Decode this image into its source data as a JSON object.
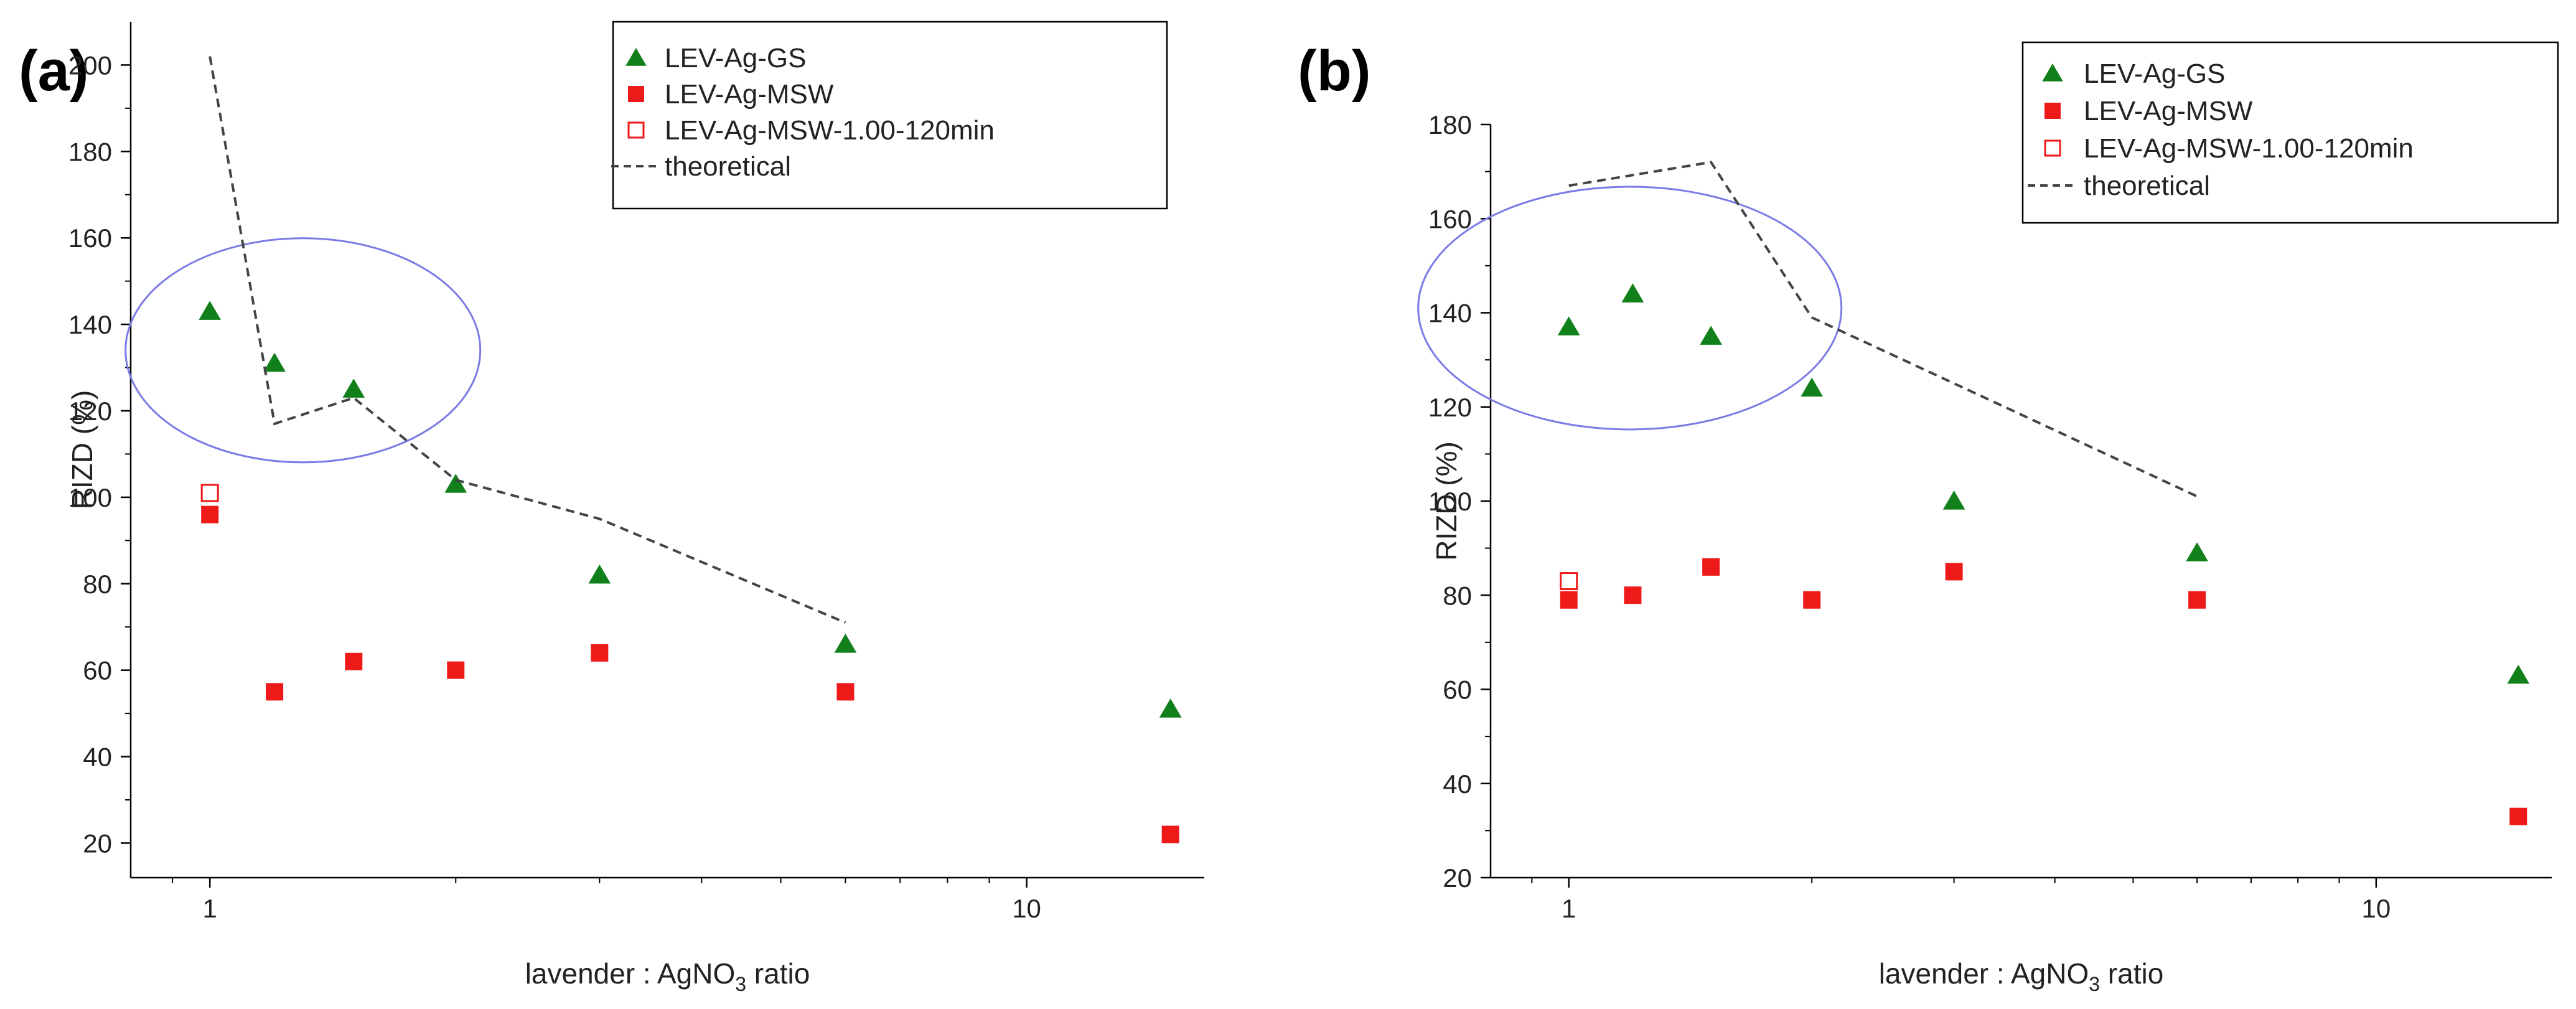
{
  "figure": {
    "panels": [
      "(a)",
      "(b)"
    ]
  },
  "colors": {
    "gs": "#12801a",
    "msw": "#ee1a1a",
    "theory": "#444444",
    "ellipse": "#7b7be6",
    "axis": "#000000"
  },
  "chart_data": [
    {
      "panel": "(a)",
      "type": "scatter",
      "xscale": "log",
      "xlim": [
        0.8,
        16.5
      ],
      "ylim": [
        12,
        210
      ],
      "xticks": [
        1,
        10
      ],
      "yticks": [
        20,
        40,
        60,
        80,
        100,
        120,
        140,
        160,
        180,
        200
      ],
      "xlabel": "lavender : AgNO",
      "xlabel_sub": "3",
      "xlabel_tail": " ratio",
      "ylabel": "RIZD (%)",
      "legend_position": "top-right",
      "series": [
        {
          "name": "LEV-Ag-GS",
          "marker": "triangle-filled",
          "color": "#12801a",
          "x": [
            1.0,
            1.2,
            1.5,
            2.0,
            3.0,
            6.0,
            15.0
          ],
          "y": [
            143,
            131,
            125,
            103,
            82,
            66,
            51
          ]
        },
        {
          "name": "LEV-Ag-MSW",
          "marker": "square-filled",
          "color": "#ee1a1a",
          "x": [
            1.0,
            1.2,
            1.5,
            2.0,
            3.0,
            6.0,
            15.0
          ],
          "y": [
            96,
            55,
            62,
            60,
            64,
            55,
            22
          ]
        },
        {
          "name": "LEV-Ag-MSW-1.00-120min",
          "marker": "square-open",
          "color": "#ee1a1a",
          "x": [
            1.0
          ],
          "y": [
            101
          ]
        },
        {
          "name": "theoretical",
          "marker": "dashed-line",
          "color": "#444444",
          "x": [
            1.0,
            1.2,
            1.5,
            2.0,
            3.0,
            6.0
          ],
          "y": [
            202,
            117,
            123,
            104,
            95,
            71
          ]
        }
      ],
      "annotations": [
        {
          "type": "ellipse",
          "center": [
            1.3,
            134
          ],
          "note": "circled points"
        }
      ]
    },
    {
      "panel": "(b)",
      "type": "scatter",
      "xscale": "log",
      "xlim": [
        0.8,
        16.5
      ],
      "ylim": [
        20,
        180
      ],
      "xticks": [
        1,
        10
      ],
      "yticks": [
        20,
        40,
        60,
        80,
        100,
        120,
        140,
        160,
        180
      ],
      "xlabel": "lavender : AgNO",
      "xlabel_sub": "3",
      "xlabel_tail": " ratio",
      "ylabel": "RIZD (%)",
      "legend_position": "top-right",
      "series": [
        {
          "name": "LEV-Ag-GS",
          "marker": "triangle-filled",
          "color": "#12801a",
          "x": [
            1.0,
            1.2,
            1.5,
            2.0,
            3.0,
            6.0,
            15.0
          ],
          "y": [
            137,
            144,
            135,
            124,
            100,
            89,
            63
          ]
        },
        {
          "name": "LEV-Ag-MSW",
          "marker": "square-filled",
          "color": "#ee1a1a",
          "x": [
            1.0,
            1.2,
            1.5,
            2.0,
            3.0,
            6.0,
            15.0
          ],
          "y": [
            79,
            80,
            86,
            79,
            85,
            79,
            33
          ]
        },
        {
          "name": "LEV-Ag-MSW-1.00-120min",
          "marker": "square-open",
          "color": "#ee1a1a",
          "x": [
            1.0
          ],
          "y": [
            83
          ]
        },
        {
          "name": "theoretical",
          "marker": "dashed-line",
          "color": "#444444",
          "x": [
            1.0,
            1.5,
            2.0,
            3.0,
            6.0
          ],
          "y": [
            167,
            172,
            139,
            125,
            101
          ]
        }
      ],
      "annotations": [
        {
          "type": "ellipse",
          "center": [
            1.19,
            141
          ],
          "note": "circled points"
        }
      ]
    }
  ]
}
